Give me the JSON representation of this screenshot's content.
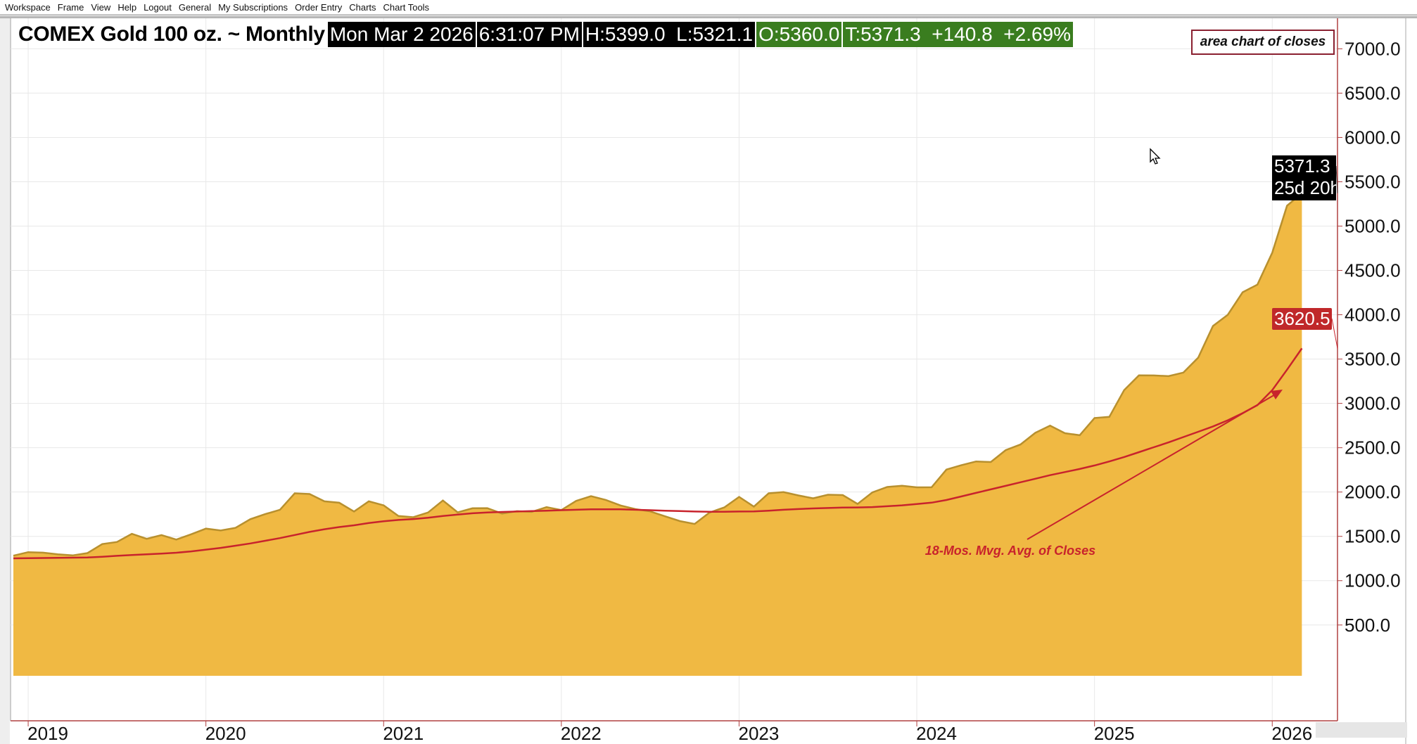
{
  "menu": [
    "Workspace",
    "Frame",
    "View",
    "Help",
    "Logout",
    "General",
    "My Subscriptions",
    "Order Entry",
    "Charts",
    "Chart Tools"
  ],
  "header": {
    "title": "COMEX Gold 100 oz. ~ Monthly",
    "date": "Mon Mar 2 2026",
    "time": "6:31:07 PM",
    "high_low": "H:5399.0  L:5321.1",
    "open": "O:5360.0",
    "trade_change": "T:5371.3  +140.8  +2.69%"
  },
  "legend_box": "area chart of closes",
  "price_tags": {
    "last": "5371.3",
    "countdown": "25d 20h",
    "ma": "3620.5"
  },
  "colors": {
    "area_fill": "#f0b943",
    "area_line": "#b8902e",
    "ma_line": "#c8232c",
    "axis": "#b04040",
    "grid": "#e8e8e8"
  },
  "chart_data": {
    "type": "area",
    "title": "COMEX Gold 100 oz. ~ Monthly",
    "ylim": [
      0,
      7000
    ],
    "yticks": [
      "500.0",
      "1000.0",
      "1500.0",
      "2000.0",
      "2500.0",
      "3000.0",
      "3500.0",
      "4000.0",
      "4500.0",
      "5000.0",
      "5500.0",
      "6000.0",
      "6500.0",
      "7000.0"
    ],
    "xticks": [
      "2019",
      "2020",
      "2021",
      "2022",
      "2023",
      "2024",
      "2025",
      "2026"
    ],
    "grid": true,
    "x": [
      "2018-12",
      "2019-01",
      "2019-02",
      "2019-03",
      "2019-04",
      "2019-05",
      "2019-06",
      "2019-07",
      "2019-08",
      "2019-09",
      "2019-10",
      "2019-11",
      "2019-12",
      "2020-01",
      "2020-02",
      "2020-03",
      "2020-04",
      "2020-05",
      "2020-06",
      "2020-07",
      "2020-08",
      "2020-09",
      "2020-10",
      "2020-11",
      "2020-12",
      "2021-01",
      "2021-02",
      "2021-03",
      "2021-04",
      "2021-05",
      "2021-06",
      "2021-07",
      "2021-08",
      "2021-09",
      "2021-10",
      "2021-11",
      "2021-12",
      "2022-01",
      "2022-02",
      "2022-03",
      "2022-04",
      "2022-05",
      "2022-06",
      "2022-07",
      "2022-08",
      "2022-09",
      "2022-10",
      "2022-11",
      "2022-12",
      "2023-01",
      "2023-02",
      "2023-03",
      "2023-04",
      "2023-05",
      "2023-06",
      "2023-07",
      "2023-08",
      "2023-09",
      "2023-10",
      "2023-11",
      "2023-12",
      "2024-01",
      "2024-02",
      "2024-03",
      "2024-04",
      "2024-05",
      "2024-06",
      "2024-07",
      "2024-08",
      "2024-09",
      "2024-10",
      "2024-11",
      "2024-12",
      "2025-01",
      "2025-02",
      "2025-03",
      "2025-04",
      "2025-05",
      "2025-06",
      "2025-07",
      "2025-08",
      "2025-09",
      "2025-10",
      "2025-11",
      "2025-12",
      "2026-01",
      "2026-02",
      "2026-03"
    ],
    "series": [
      {
        "name": "area chart of closes",
        "kind": "area",
        "values": [
          1282,
          1322,
          1316,
          1298,
          1285,
          1311,
          1413,
          1437,
          1529,
          1472,
          1514,
          1464,
          1523,
          1587,
          1566,
          1596,
          1694,
          1751,
          1800,
          1986,
          1978,
          1895,
          1879,
          1780,
          1895,
          1850,
          1729,
          1716,
          1769,
          1905,
          1771,
          1817,
          1818,
          1757,
          1784,
          1776,
          1829,
          1797,
          1900,
          1954,
          1911,
          1848,
          1807,
          1782,
          1726,
          1672,
          1640,
          1768,
          1826,
          1945,
          1836,
          1986,
          1999,
          1962,
          1929,
          1970,
          1966,
          1866,
          1996,
          2057,
          2071,
          2053,
          2054,
          2254,
          2302,
          2345,
          2339,
          2473,
          2536,
          2668,
          2749,
          2664,
          2641,
          2835,
          2848,
          3150,
          3316,
          3315,
          3307,
          3348,
          3516,
          3873,
          4000,
          4254,
          4340,
          4700,
          5230,
          5371.3
        ]
      },
      {
        "name": "18-Mos. Mvg. Avg. of Closes",
        "kind": "line",
        "values": [
          1252,
          1254,
          1256,
          1258,
          1260,
          1262,
          1270,
          1280,
          1290,
          1298,
          1306,
          1315,
          1330,
          1350,
          1370,
          1395,
          1420,
          1450,
          1480,
          1515,
          1550,
          1580,
          1605,
          1625,
          1650,
          1670,
          1685,
          1695,
          1710,
          1730,
          1745,
          1760,
          1770,
          1775,
          1780,
          1785,
          1790,
          1795,
          1800,
          1805,
          1805,
          1805,
          1800,
          1795,
          1790,
          1785,
          1780,
          1778,
          1778,
          1780,
          1782,
          1790,
          1800,
          1808,
          1815,
          1820,
          1825,
          1826,
          1830,
          1840,
          1850,
          1865,
          1880,
          1910,
          1950,
          1990,
          2030,
          2070,
          2110,
          2150,
          2190,
          2225,
          2260,
          2300,
          2345,
          2395,
          2450,
          2505,
          2560,
          2620,
          2680,
          2740,
          2810,
          2890,
          2980,
          3150,
          3380,
          3620.5
        ]
      }
    ],
    "annotation": "18-Mos. Mvg. Avg. of Closes"
  }
}
